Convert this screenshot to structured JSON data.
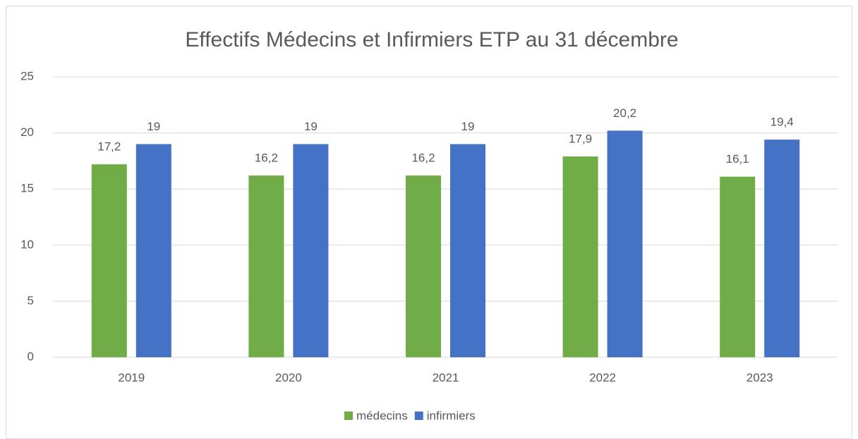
{
  "chart_data": {
    "type": "bar",
    "title": "Effectifs Médecins et Infirmiers ETP au 31 décembre",
    "categories": [
      "2019",
      "2020",
      "2021",
      "2022",
      "2023"
    ],
    "series": [
      {
        "name": "médecins",
        "color": "#70ad47",
        "values": [
          17.2,
          16.2,
          16.2,
          17.9,
          16.1
        ],
        "value_labels": [
          "17,2",
          "16,2",
          "16,2",
          "17,9",
          "16,1"
        ]
      },
      {
        "name": "infirmiers",
        "color": "#4472c4",
        "values": [
          19,
          19,
          19,
          20.2,
          19.4
        ],
        "value_labels": [
          "19",
          "19",
          "19",
          "20,2",
          "19,4"
        ]
      }
    ],
    "ylim": [
      0,
      25
    ],
    "yticks": [
      0,
      5,
      10,
      15,
      20,
      25
    ],
    "grid": true,
    "legend": "bottom"
  }
}
